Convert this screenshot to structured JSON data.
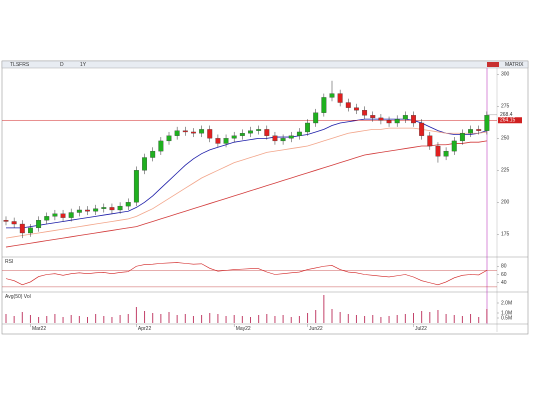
{
  "toolbar": {
    "symbol": "TLSFRS",
    "interval": "D",
    "range": "1Y",
    "view": "MATRIX"
  },
  "chart_data": [
    {
      "type": "candlestick",
      "open": [
        186,
        185,
        183,
        176,
        180,
        186,
        189,
        191,
        188,
        192,
        194,
        193,
        195,
        196,
        194,
        197,
        200,
        225,
        235,
        240,
        248,
        252,
        256,
        255,
        254,
        257,
        250,
        246,
        250,
        252,
        254,
        256,
        257,
        252,
        248,
        250,
        252,
        255,
        262,
        270,
        282,
        285,
        278,
        274,
        272,
        268,
        266,
        264,
        262,
        265,
        268,
        262,
        252,
        244,
        236,
        240,
        248,
        254,
        257,
        256
      ],
      "high": [
        189,
        188,
        186,
        183,
        189,
        192,
        194,
        194,
        195,
        197,
        197,
        198,
        199,
        199,
        200,
        203,
        228,
        238,
        243,
        251,
        255,
        259,
        259,
        258,
        260,
        260,
        253,
        253,
        255,
        257,
        259,
        260,
        260,
        255,
        253,
        255,
        258,
        265,
        273,
        285,
        295,
        288,
        281,
        277,
        275,
        271,
        269,
        267,
        268,
        271,
        271,
        265,
        255,
        247,
        243,
        251,
        257,
        260,
        260,
        271
      ],
      "low": [
        182,
        180,
        172,
        173,
        177,
        183,
        186,
        185,
        185,
        189,
        190,
        190,
        192,
        191,
        191,
        194,
        197,
        222,
        232,
        237,
        245,
        249,
        252,
        251,
        251,
        247,
        243,
        243,
        247,
        249,
        251,
        253,
        249,
        245,
        245,
        247,
        249,
        252,
        259,
        267,
        279,
        275,
        271,
        269,
        265,
        263,
        261,
        259,
        259,
        262,
        259,
        249,
        241,
        231,
        233,
        237,
        245,
        251,
        253,
        253
      ],
      "close": [
        185,
        183,
        176,
        180,
        186,
        189,
        191,
        188,
        192,
        194,
        193,
        195,
        196,
        194,
        197,
        200,
        225,
        235,
        240,
        248,
        252,
        256,
        255,
        254,
        257,
        250,
        246,
        250,
        252,
        254,
        256,
        257,
        252,
        248,
        250,
        252,
        255,
        262,
        270,
        282,
        285,
        278,
        274,
        272,
        268,
        266,
        264,
        262,
        265,
        268,
        262,
        252,
        244,
        236,
        240,
        248,
        254,
        257,
        256,
        268
      ],
      "up_color": "#1fb01f",
      "down_color": "#e02020",
      "lines": [
        {
          "color": "#1c1ca8",
          "values": [
            180,
            180,
            180,
            181,
            182,
            183,
            184,
            185,
            186,
            187,
            188,
            189,
            190,
            191,
            192,
            193,
            196,
            200,
            205,
            211,
            217,
            223,
            229,
            234,
            238,
            241,
            243,
            245,
            247,
            248,
            249,
            250,
            250,
            251,
            251,
            251,
            252,
            253,
            255,
            257,
            260,
            262,
            263,
            264,
            265,
            265,
            265,
            265,
            265,
            265,
            264,
            262,
            259,
            256,
            254,
            253,
            253,
            253,
            254,
            256
          ]
        },
        {
          "color": "#f2a58a",
          "values": [
            172,
            173,
            174,
            175,
            176,
            177,
            178,
            179,
            180,
            181,
            182,
            183,
            184,
            185,
            186,
            187,
            189,
            192,
            195,
            199,
            203,
            207,
            211,
            215,
            219,
            222,
            225,
            228,
            231,
            233,
            235,
            237,
            239,
            240,
            241,
            242,
            243,
            244,
            246,
            248,
            250,
            252,
            254,
            255,
            256,
            257,
            257,
            258,
            258,
            258,
            258,
            257,
            256,
            255,
            254,
            254,
            254,
            254,
            254,
            255
          ]
        },
        {
          "color": "#d23a3a",
          "values": [
            165,
            166,
            167,
            168,
            169,
            170,
            171,
            172,
            173,
            174,
            175,
            176,
            177,
            178,
            179,
            180,
            181,
            183,
            185,
            187,
            189,
            191,
            193,
            195,
            197,
            199,
            201,
            203,
            205,
            207,
            209,
            211,
            213,
            215,
            217,
            219,
            221,
            223,
            225,
            227,
            229,
            231,
            233,
            235,
            237,
            238,
            239,
            240,
            241,
            242,
            243,
            244,
            244,
            245,
            245,
            246,
            246,
            247,
            247,
            248
          ]
        }
      ],
      "ylim": [
        158,
        305
      ],
      "yticks": [
        300,
        275,
        250,
        225,
        200,
        175
      ],
      "last_price": 268.4,
      "ref_price": 264.15,
      "ref_color": "#d02020"
    },
    {
      "type": "line",
      "title": "RSI",
      "values": [
        50,
        45,
        35,
        42,
        55,
        60,
        62,
        58,
        62,
        64,
        62,
        64,
        65,
        62,
        65,
        67,
        80,
        84,
        85,
        87,
        88,
        89,
        87,
        85,
        86,
        75,
        68,
        70,
        72,
        73,
        74,
        74,
        66,
        60,
        62,
        64,
        66,
        72,
        76,
        80,
        82,
        72,
        66,
        64,
        60,
        58,
        56,
        54,
        57,
        60,
        54,
        45,
        40,
        35,
        42,
        52,
        58,
        60,
        59,
        70
      ],
      "color": "#d02020",
      "levels": [
        70,
        30
      ],
      "ylim": [
        20,
        100
      ],
      "yticks": [
        80,
        60,
        40
      ]
    },
    {
      "type": "bar",
      "title": "Avg(50) Vol",
      "values": [
        0.9,
        0.7,
        1.1,
        0.8,
        0.6,
        0.7,
        0.9,
        0.6,
        0.8,
        0.7,
        0.6,
        0.9,
        0.7,
        0.6,
        0.8,
        0.9,
        1.6,
        1.2,
        1.0,
        0.9,
        1.1,
        0.8,
        0.9,
        0.7,
        0.8,
        1.0,
        0.9,
        0.7,
        0.8,
        0.7,
        0.6,
        0.8,
        0.9,
        0.7,
        0.8,
        0.6,
        0.7,
        1.0,
        1.3,
        2.8,
        1.4,
        1.1,
        0.9,
        0.8,
        0.7,
        0.8,
        0.6,
        0.7,
        0.8,
        0.9,
        1.0,
        1.2,
        1.1,
        1.3,
        0.9,
        0.8,
        0.7,
        0.9,
        0.6,
        1.4
      ],
      "color": "#c2426a",
      "ylim": [
        0,
        3
      ],
      "yticks": [
        {
          "value": 2,
          "label": "2.0M"
        },
        {
          "value": 1,
          "label": "1.0M"
        },
        {
          "value": 0.5,
          "label": "0.5M"
        }
      ],
      "xticks": [
        {
          "value": 3,
          "label": "Mar22"
        },
        {
          "value": 16,
          "label": "Apr22"
        },
        {
          "value": 28,
          "label": "May22"
        },
        {
          "value": 37,
          "label": "Jun22"
        },
        {
          "value": 50,
          "label": "Jul22"
        }
      ]
    }
  ]
}
